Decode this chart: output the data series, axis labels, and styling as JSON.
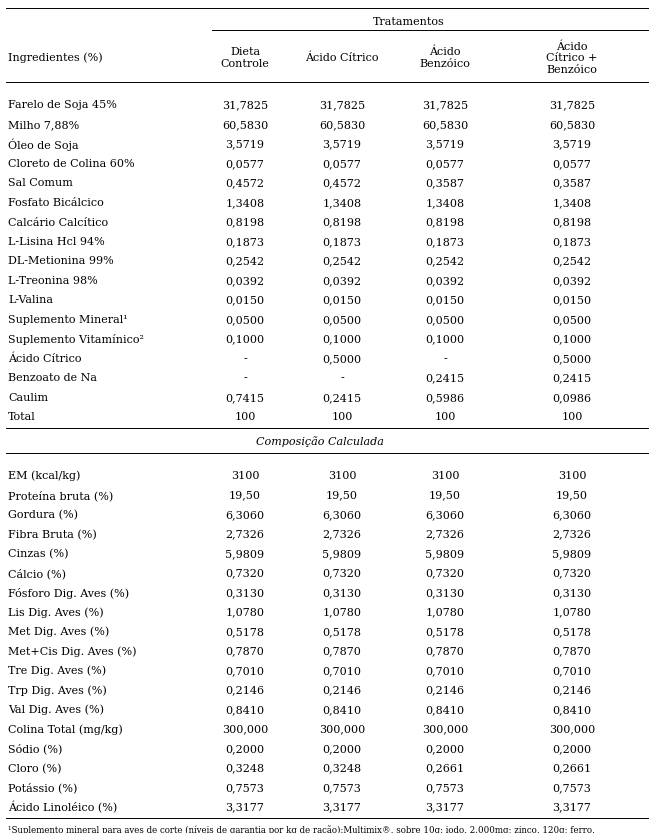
{
  "header_tratamentos": "Tratamentos",
  "col_headers": [
    "Ingredientes (%)",
    "Dieta\nControle",
    "Ácido Cítrico",
    "Ácido\nBenzóico",
    "Ácido\nCítrico +\nBenzóico"
  ],
  "rows": [
    [
      "Farelo de Soja 45%",
      "31,7825",
      "31,7825",
      "31,7825",
      "31,7825"
    ],
    [
      "Milho 7,88%",
      "60,5830",
      "60,5830",
      "60,5830",
      "60,5830"
    ],
    [
      "Óleo de Soja",
      "3,5719",
      "3,5719",
      "3,5719",
      "3,5719"
    ],
    [
      "Cloreto de Colina 60%",
      "0,0577",
      "0,0577",
      "0,0577",
      "0,0577"
    ],
    [
      "Sal Comum",
      "0,4572",
      "0,4572",
      "0,3587",
      "0,3587"
    ],
    [
      "Fosfato Bicálcico",
      "1,3408",
      "1,3408",
      "1,3408",
      "1,3408"
    ],
    [
      "Calcário Calcítico",
      "0,8198",
      "0,8198",
      "0,8198",
      "0,8198"
    ],
    [
      "L-Lisina Hcl 94%",
      "0,1873",
      "0,1873",
      "0,1873",
      "0,1873"
    ],
    [
      "DL-Metionina 99%",
      "0,2542",
      "0,2542",
      "0,2542",
      "0,2542"
    ],
    [
      "L-Treonina 98%",
      "0,0392",
      "0,0392",
      "0,0392",
      "0,0392"
    ],
    [
      "L-Valina",
      "0,0150",
      "0,0150",
      "0,0150",
      "0,0150"
    ],
    [
      "Suplemento Mineral¹",
      "0,0500",
      "0,0500",
      "0,0500",
      "0,0500"
    ],
    [
      "Suplemento Vitamínico²",
      "0,1000",
      "0,1000",
      "0,1000",
      "0,1000"
    ],
    [
      "Ácido Cítrico",
      "-",
      "0,5000",
      "-",
      "0,5000"
    ],
    [
      "Benzoato de Na",
      "-",
      "-",
      "0,2415",
      "0,2415"
    ],
    [
      "Caulim",
      "0,7415",
      "0,2415",
      "0,5986",
      "0,0986"
    ],
    [
      "Total",
      "100",
      "100",
      "100",
      "100"
    ]
  ],
  "section_header": "Composição Calculada",
  "rows2": [
    [
      "EM (kcal/kg)",
      "3100",
      "3100",
      "3100",
      "3100"
    ],
    [
      "Proteína bruta (%)",
      "19,50",
      "19,50",
      "19,50",
      "19,50"
    ],
    [
      "Gordura (%)",
      "6,3060",
      "6,3060",
      "6,3060",
      "6,3060"
    ],
    [
      "Fibra Bruta (%)",
      "2,7326",
      "2,7326",
      "2,7326",
      "2,7326"
    ],
    [
      "Cinzas (%)",
      "5,9809",
      "5,9809",
      "5,9809",
      "5,9809"
    ],
    [
      "Cálcio (%)",
      "0,7320",
      "0,7320",
      "0,7320",
      "0,7320"
    ],
    [
      "Fósforo Dig. Aves (%)",
      "0,3130",
      "0,3130",
      "0,3130",
      "0,3130"
    ],
    [
      "Lis Dig. Aves (%)",
      "1,0780",
      "1,0780",
      "1,0780",
      "1,0780"
    ],
    [
      "Met Dig. Aves (%)",
      "0,5178",
      "0,5178",
      "0,5178",
      "0,5178"
    ],
    [
      "Met+Cis Dig. Aves (%)",
      "0,7870",
      "0,7870",
      "0,7870",
      "0,7870"
    ],
    [
      "Tre Dig. Aves (%)",
      "0,7010",
      "0,7010",
      "0,7010",
      "0,7010"
    ],
    [
      "Trp Dig. Aves (%)",
      "0,2146",
      "0,2146",
      "0,2146",
      "0,2146"
    ],
    [
      "Val Dig. Aves (%)",
      "0,8410",
      "0,8410",
      "0,8410",
      "0,8410"
    ],
    [
      "Colina Total (mg/kg)",
      "300,000",
      "300,000",
      "300,000",
      "300,000"
    ],
    [
      "Sódio (%)",
      "0,2000",
      "0,2000",
      "0,2000",
      "0,2000"
    ],
    [
      "Cloro (%)",
      "0,3248",
      "0,3248",
      "0,2661",
      "0,2661"
    ],
    [
      "Potássio (%)",
      "0,7573",
      "0,7573",
      "0,7573",
      "0,7573"
    ],
    [
      "Ácido Linoléico (%)",
      "3,3177",
      "3,3177",
      "3,3177",
      "3,3177"
    ]
  ],
  "footnote": "¹Suplemento mineral para aves de corte (níveis de garantia por kg de ração):Multimix®, sobre 10g: iodo, 2.000mg; zinco, 120g; ferro,",
  "bg_color": "#ffffff",
  "text_color": "#000000",
  "font_size": 8.0,
  "footnote_fontsize": 6.2
}
